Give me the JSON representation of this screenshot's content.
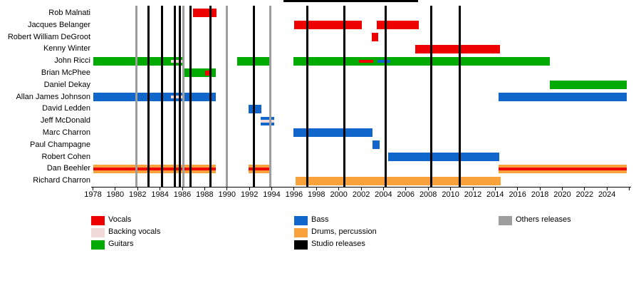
{
  "chart_data": {
    "type": "timeline",
    "description": "Band members timeline chart (gantt-style) with release marker lines",
    "x_axis": {
      "min": 1978,
      "max": 2026,
      "tick_step": 2,
      "labels": [
        "1978",
        "1980",
        "1982",
        "1984",
        "1986",
        "1988",
        "1990",
        "1992",
        "1994",
        "1996",
        "1998",
        "2000",
        "2002",
        "2004",
        "2006",
        "2008",
        "2010",
        "2012",
        "2014",
        "2016",
        "2018",
        "2020",
        "2022",
        "2024"
      ],
      "extra_unlabeled_tick": 2026
    },
    "colors": {
      "vocals": "#EE0000",
      "backing_vocals": "#F2DADA",
      "guitars": "#00AA00",
      "bass": "#1166CC",
      "drums": "#F9A13A",
      "studio": "#000000",
      "others": "#9E9E9E"
    },
    "release_lines": {
      "studio": [
        1982.95,
        1984.15,
        1985.3,
        1985.8,
        1986.7,
        1988.5,
        1992.4,
        1997.15,
        2000.5,
        2004.2,
        2008.3,
        2010.8
      ],
      "others": [
        1981.9,
        1986.1,
        1989.95,
        1993.85
      ]
    },
    "members": [
      {
        "name": "Rob Malnati",
        "segments": [
          {
            "role": "vocals",
            "start": 1986.95,
            "end": 1989.05
          }
        ]
      },
      {
        "name": "Jacques Belanger",
        "segments": [
          {
            "role": "vocals",
            "start": 1996.0,
            "end": 2002.05
          },
          {
            "role": "vocals",
            "start": 2003.4,
            "end": 2007.15
          }
        ]
      },
      {
        "name": "Robert William DeGroot",
        "segments": [
          {
            "role": "vocals",
            "start": 2002.95,
            "end": 2003.5
          }
        ]
      },
      {
        "name": "Kenny Winter",
        "segments": [
          {
            "role": "vocals",
            "start": 2006.85,
            "end": 2014.4
          }
        ]
      },
      {
        "name": "John Ricci",
        "segments": [
          {
            "role": "guitars",
            "start": 1978.0,
            "end": 1986.05,
            "overlays": [
              {
                "role": "backing_vocals",
                "start": 1985.0,
                "end": 1986.0
              }
            ]
          },
          {
            "role": "guitars",
            "start": 1990.9,
            "end": 1993.85
          },
          {
            "role": "guitars",
            "start": 1995.95,
            "end": 2018.9,
            "overlays": [
              {
                "role": "vocals",
                "start": 2001.8,
                "end": 2003.1
              },
              {
                "role": "bass",
                "start": 2003.45,
                "end": 2004.6
              }
            ]
          }
        ]
      },
      {
        "name": "Brian McPhee",
        "segments": [
          {
            "role": "guitars",
            "start": 1986.0,
            "end": 1989.0,
            "overlays": [
              {
                "role": "vocals",
                "start": 1988.05,
                "end": 1988.55,
                "style": "dot"
              }
            ]
          }
        ]
      },
      {
        "name": "Daniel Dekay",
        "segments": [
          {
            "role": "guitars",
            "start": 2018.9,
            "end": 2025.8
          }
        ]
      },
      {
        "name": "Allan James Johnson",
        "segments": [
          {
            "role": "bass",
            "start": 1978.0,
            "end": 1989.0,
            "overlays": [
              {
                "role": "backing_vocals",
                "start": 1985.0,
                "end": 1986.0
              }
            ]
          },
          {
            "role": "bass",
            "start": 2014.3,
            "end": 2025.8
          }
        ]
      },
      {
        "name": "David Ledden",
        "segments": [
          {
            "role": "bass",
            "start": 1991.9,
            "end": 1993.1
          }
        ]
      },
      {
        "name": "Jeff McDonald",
        "segments": [
          {
            "role": "bass",
            "start": 1993.0,
            "end": 1994.2,
            "overlays": [
              {
                "role": "backing_vocals",
                "start": 1993.0,
                "end": 1994.2
              }
            ]
          }
        ]
      },
      {
        "name": "Marc Charron",
        "segments": [
          {
            "role": "bass",
            "start": 1995.95,
            "end": 2003.0
          }
        ]
      },
      {
        "name": "Paul Champagne",
        "segments": [
          {
            "role": "bass",
            "start": 2003.0,
            "end": 2003.65
          }
        ]
      },
      {
        "name": "Robert Cohen",
        "segments": [
          {
            "role": "bass",
            "start": 2004.4,
            "end": 2014.35
          }
        ]
      },
      {
        "name": "Dan Beehler",
        "segments": [
          {
            "role": "drums",
            "start": 1978.0,
            "end": 1989.0,
            "overlays": [
              {
                "role": "vocals",
                "start": 1978.0,
                "end": 1989.0
              }
            ]
          },
          {
            "role": "drums",
            "start": 1991.9,
            "end": 1993.85,
            "overlays": [
              {
                "role": "vocals",
                "start": 1991.9,
                "end": 1993.85
              }
            ]
          },
          {
            "role": "drums",
            "start": 2014.3,
            "end": 2025.8,
            "overlays": [
              {
                "role": "vocals",
                "start": 2014.3,
                "end": 2025.8
              }
            ]
          }
        ]
      },
      {
        "name": "Richard Charron",
        "segments": [
          {
            "role": "drums",
            "start": 1996.1,
            "end": 2014.5
          }
        ]
      }
    ],
    "legend": {
      "columns": [
        [
          {
            "key": "vocals",
            "label": "Vocals"
          },
          {
            "key": "backing_vocals",
            "label": "Backing vocals"
          },
          {
            "key": "guitars",
            "label": "Guitars"
          }
        ],
        [
          {
            "key": "bass",
            "label": "Bass"
          },
          {
            "key": "drums",
            "label": "Drums, percussion"
          },
          {
            "key": "studio",
            "label": "Studio releases"
          }
        ],
        [
          {
            "key": "others",
            "label": "Others releases"
          }
        ]
      ]
    }
  }
}
